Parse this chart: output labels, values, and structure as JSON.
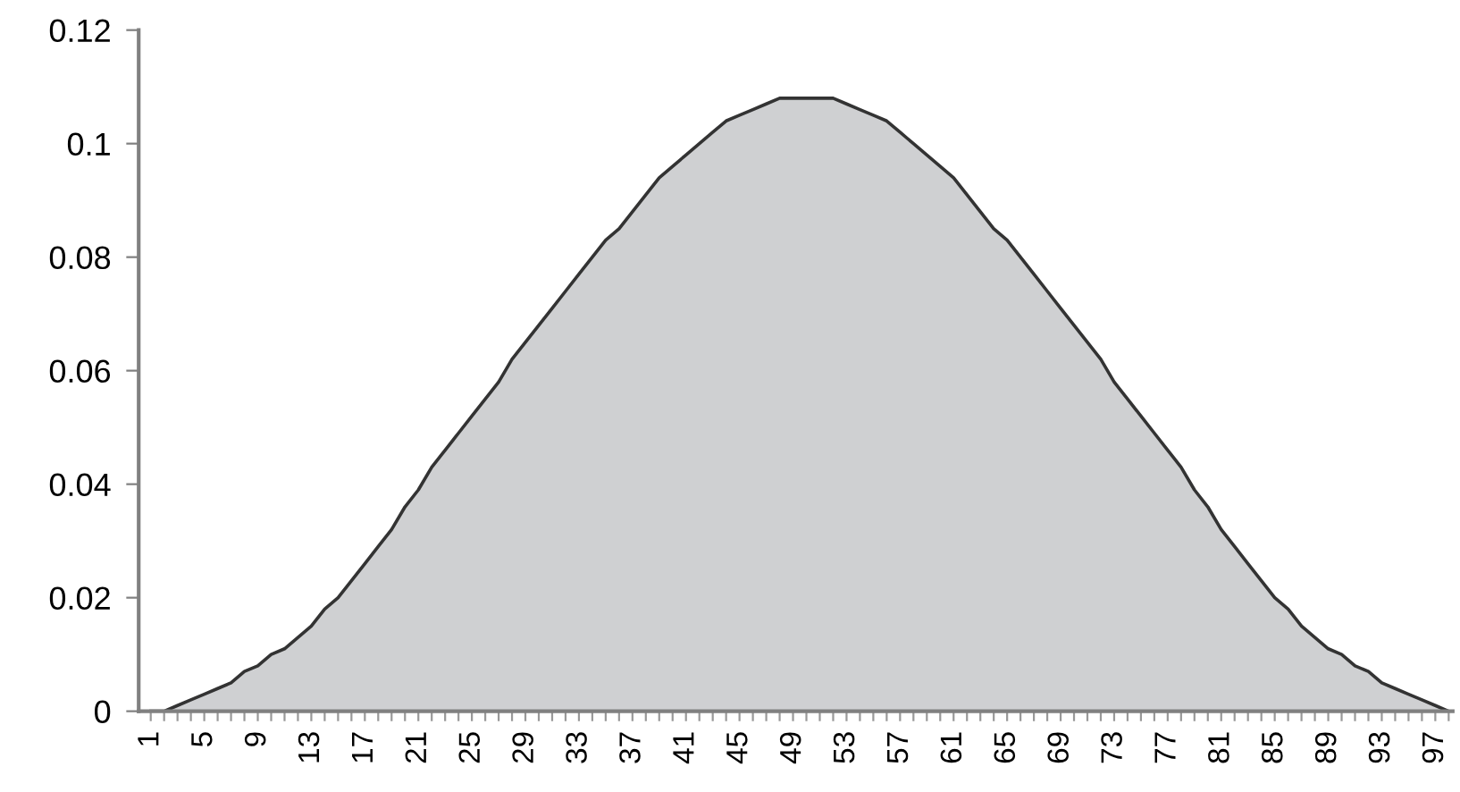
{
  "chart_data": {
    "type": "area",
    "categories": [
      "1",
      null,
      null,
      null,
      "5",
      null,
      null,
      null,
      "9",
      null,
      null,
      null,
      "13",
      null,
      null,
      null,
      "17",
      null,
      null,
      null,
      "21",
      null,
      null,
      null,
      "25",
      null,
      null,
      null,
      "29",
      null,
      null,
      null,
      "33",
      null,
      null,
      null,
      "37",
      null,
      null,
      null,
      "41",
      null,
      null,
      null,
      "45",
      null,
      null,
      null,
      "49",
      null,
      null,
      null,
      "53",
      null,
      null,
      null,
      "57",
      null,
      null,
      null,
      "61",
      null,
      null,
      null,
      "65",
      null,
      null,
      null,
      "69",
      null,
      null,
      null,
      "73",
      null,
      null,
      null,
      "77",
      null,
      null,
      null,
      "81",
      null,
      null,
      null,
      "85",
      null,
      null,
      null,
      "89",
      null,
      null,
      null,
      "93",
      null,
      null,
      null,
      "97",
      null
    ],
    "series": [
      {
        "color": "#cfd0d2",
        "values": [
          0.0,
          0.0,
          0.001,
          0.002,
          0.003,
          0.004,
          0.005,
          0.007,
          0.008,
          0.01,
          0.011,
          0.013,
          0.015,
          0.018,
          0.02,
          0.023,
          0.026,
          0.029,
          0.032,
          0.036,
          0.039,
          0.043,
          0.046,
          0.049,
          0.052,
          0.055,
          0.058,
          0.062,
          0.065,
          0.068,
          0.071,
          0.074,
          0.077,
          0.08,
          0.083,
          0.085,
          0.088,
          0.091,
          0.094,
          0.096,
          0.098,
          0.1,
          0.102,
          0.104,
          0.105,
          0.106,
          0.107,
          0.108,
          0.108,
          0.108,
          0.108,
          0.108,
          0.107,
          0.106,
          0.105,
          0.104,
          0.102,
          0.1,
          0.098,
          0.096,
          0.094,
          0.091,
          0.088,
          0.085,
          0.083,
          0.08,
          0.077,
          0.074,
          0.071,
          0.068,
          0.065,
          0.062,
          0.058,
          0.055,
          0.052,
          0.049,
          0.046,
          0.043,
          0.039,
          0.036,
          0.032,
          0.029,
          0.026,
          0.023,
          0.02,
          0.018,
          0.015,
          0.013,
          0.011,
          0.01,
          0.008,
          0.007,
          0.005,
          0.004,
          0.003,
          0.002,
          0.001,
          0.0
        ]
      }
    ],
    "ylim": [
      0,
      0.12
    ],
    "yticks": [
      0,
      0.02,
      0.04,
      0.06,
      0.08,
      {
        "value": 0.1,
        "label": "0.1"
      },
      0.12
    ],
    "grid": false
  }
}
